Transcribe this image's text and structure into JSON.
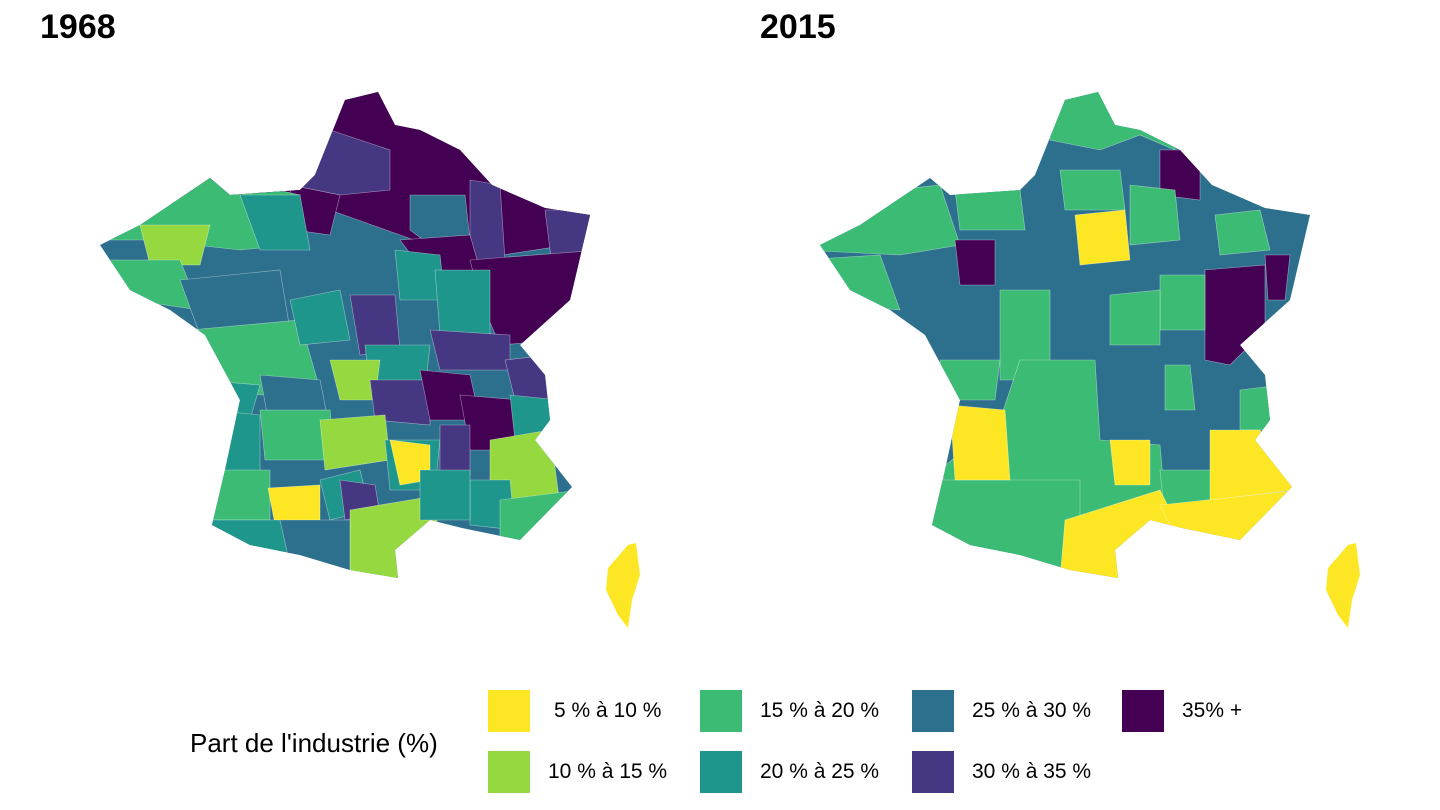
{
  "panels": [
    {
      "title": "1968"
    },
    {
      "title": "2015"
    }
  ],
  "legend": {
    "title": "Part de l'industrie (%)",
    "classes": [
      {
        "label": "5 % à 10 %",
        "color": "#fde725"
      },
      {
        "label": "10 % à 15 %",
        "color": "#95d840"
      },
      {
        "label": "15 % à 20 %",
        "color": "#3cbb75"
      },
      {
        "label": "20 % à 25 %",
        "color": "#1f968b"
      },
      {
        "label": "25 % à 30 %",
        "color": "#2d708e"
      },
      {
        "label": "30 % à 35 %",
        "color": "#453781"
      },
      {
        "label": "35% +",
        "color": "#440154"
      }
    ]
  }
}
